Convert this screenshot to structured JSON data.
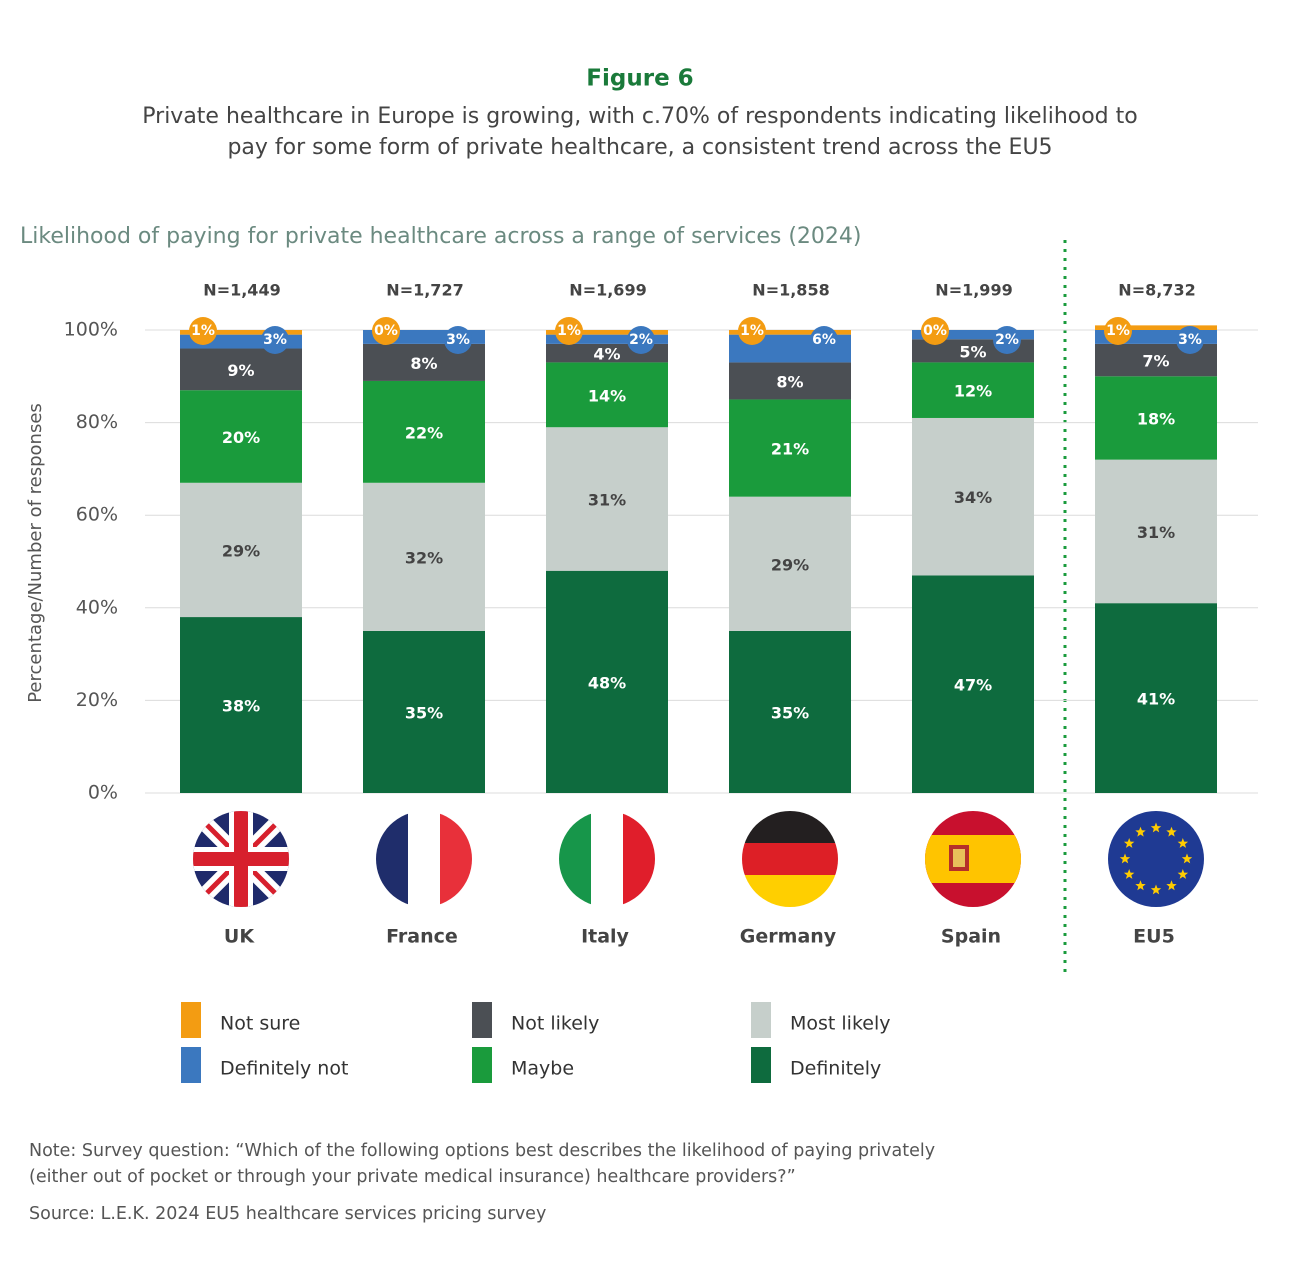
{
  "chart_data": {
    "type": "stacked_bar",
    "figure_label": "Figure 6",
    "title": [
      "Private healthcare in Europe is growing, with c.70% of respondents indicating likelihood to",
      "pay for some form of private healthcare, a consistent trend across the EU5"
    ],
    "subtitle": "Likelihood of paying for private healthcare across a  range of services (2024)",
    "y_label": "Percentage/Number of responses",
    "categories": [
      "UK",
      "France",
      "Italy",
      "Germany",
      "Spain",
      "EU5"
    ],
    "n_labels": [
      "N=1,449",
      "N=1,727",
      "N=1,699",
      "N=1,858",
      "N=1,999",
      "N=8,732"
    ],
    "series": [
      {
        "name": "Definitely",
        "color": "#0e6b3e",
        "values": [
          38,
          35,
          48,
          35,
          47,
          41
        ],
        "value_labels": [
          "38%",
          "35%",
          "48%",
          "35%",
          "47%",
          "41%"
        ]
      },
      {
        "name": "Most likely",
        "color": "#c6cfcb",
        "values": [
          29,
          32,
          31,
          29,
          34,
          31
        ],
        "value_labels": [
          "29%",
          "32%",
          "31%",
          "29%",
          "34%",
          "31%"
        ]
      },
      {
        "name": "Maybe",
        "color": "#1a9b3c",
        "values": [
          20,
          22,
          14,
          21,
          12,
          18
        ],
        "value_labels": [
          "20%",
          "22%",
          "14%",
          "21%",
          "12%",
          "18%"
        ]
      },
      {
        "name": "Not likely",
        "color": "#4b4f54",
        "values": [
          9,
          8,
          4,
          8,
          5,
          7
        ],
        "value_labels": [
          "9%",
          "8%",
          "4%",
          "8%",
          "5%",
          "7%"
        ]
      },
      {
        "name": "Definitely not",
        "color": "#3b78bf",
        "values": [
          3,
          3,
          2,
          6,
          2,
          3
        ],
        "value_labels": [
          "3%",
          "3%",
          "2%",
          "6%",
          "2%",
          "3%"
        ]
      },
      {
        "name": "Not sure",
        "color": "#f39c12",
        "values": [
          1,
          0,
          1,
          1,
          0,
          1
        ],
        "value_labels": [
          "1%",
          "0%",
          "1%",
          "1%",
          "0%",
          "1%"
        ]
      }
    ],
    "legend_order": [
      5,
      4,
      3,
      2,
      1,
      0
    ],
    "ylim": [
      0,
      100
    ],
    "yticks": [
      {
        "value": 0,
        "label": "0%"
      },
      {
        "value": 20,
        "label": "20%"
      },
      {
        "value": 40,
        "label": "40%"
      },
      {
        "value": 60,
        "label": "60%"
      },
      {
        "value": 80,
        "label": "80%"
      },
      {
        "value": 100,
        "label": "100%"
      }
    ],
    "grid": true,
    "note": [
      "Note: Survey question: “Which of the following options best describes the likelihood of paying privately",
      "(either out of pocket or through your private medical insurance) healthcare providers?”"
    ],
    "source": "Source: L.E.K. 2024 EU5 healthcare services pricing survey"
  }
}
